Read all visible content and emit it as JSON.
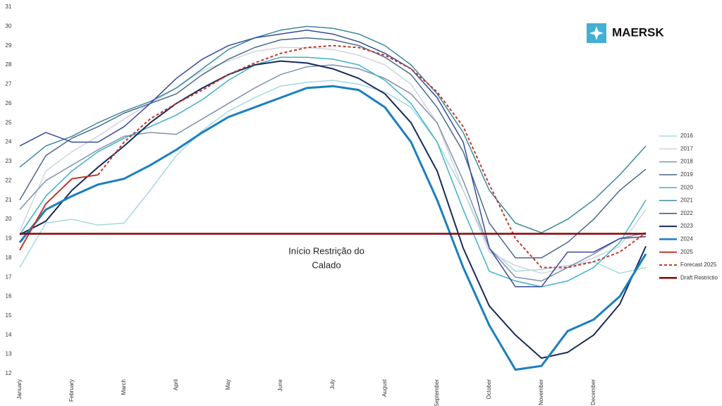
{
  "chart_data": {
    "type": "line",
    "brand": "MAERSK",
    "annotation": [
      "Início Restrição do",
      "Calado"
    ],
    "categories": [
      "January",
      null,
      "February",
      null,
      "March",
      null,
      "April",
      null,
      "May",
      null,
      "June",
      null,
      "July",
      null,
      "August",
      null,
      "September",
      null,
      "October",
      null,
      "November",
      null,
      "December",
      null,
      null
    ],
    "ylim": [
      12,
      31
    ],
    "yticks": [
      12,
      13,
      14,
      15,
      16,
      17,
      18,
      19,
      20,
      21,
      22,
      23,
      24,
      25,
      26,
      27,
      28,
      29,
      30,
      31
    ],
    "grid": false,
    "legend": "right",
    "series": [
      {
        "name": "2016",
        "color": "#a8d8e0",
        "width": 1.5,
        "values": [
          17.5,
          19.8,
          20.0,
          19.7,
          19.8,
          21.5,
          23.3,
          24.6,
          25.6,
          26.3,
          26.9,
          27.1,
          27.2,
          27.0,
          26.6,
          25.8,
          24.0,
          21.5,
          18.5,
          17.3,
          17.4,
          17.6,
          17.8,
          17.2,
          17.5
        ]
      },
      {
        "name": "2017",
        "color": "#d0d4e0",
        "width": 1.5,
        "values": [
          19.4,
          22.5,
          23.5,
          24.3,
          25.2,
          26.0,
          26.8,
          27.7,
          28.2,
          28.7,
          28.9,
          28.9,
          28.8,
          28.5,
          28.0,
          27.0,
          25.0,
          21.5,
          18.3,
          17.6,
          17.2,
          17.5,
          18.0,
          18.6,
          20.5
        ]
      },
      {
        "name": "2018",
        "color": "#8090b0",
        "width": 1.5,
        "values": [
          20.5,
          22.0,
          22.8,
          23.6,
          24.3,
          24.5,
          24.4,
          25.2,
          26.0,
          26.8,
          27.5,
          27.9,
          28.0,
          27.8,
          27.3,
          26.5,
          25.0,
          22.0,
          18.5,
          17.0,
          16.8,
          17.5,
          18.2,
          19.0,
          19.3
        ]
      },
      {
        "name": "2019",
        "color": "#4a6a8a",
        "width": 1.5,
        "values": [
          21.0,
          23.3,
          24.2,
          24.8,
          25.5,
          26.0,
          26.5,
          27.5,
          28.3,
          28.9,
          29.3,
          29.4,
          29.3,
          29.0,
          28.4,
          27.5,
          25.8,
          23.5,
          19.8,
          18.0,
          18.0,
          18.8,
          20.0,
          21.5,
          22.6
        ]
      },
      {
        "name": "2020",
        "color": "#40b0c8",
        "width": 1.5,
        "values": [
          19.2,
          21.2,
          22.5,
          23.5,
          24.2,
          24.8,
          25.4,
          26.2,
          27.2,
          28.0,
          28.4,
          28.4,
          28.3,
          28.0,
          27.2,
          26.0,
          24.0,
          20.5,
          17.3,
          16.8,
          16.5,
          16.8,
          17.5,
          18.8,
          21.0
        ]
      },
      {
        "name": "2021",
        "color": "#3a8aa0",
        "width": 1.5,
        "values": [
          22.7,
          23.8,
          24.3,
          25.0,
          25.6,
          26.1,
          26.8,
          27.8,
          28.8,
          29.4,
          29.8,
          30.0,
          29.9,
          29.6,
          29.0,
          28.0,
          26.5,
          24.5,
          21.5,
          19.8,
          19.3,
          20.0,
          21.0,
          22.3,
          23.8
        ]
      },
      {
        "name": "2022",
        "color": "#3a4a9a",
        "width": 1.5,
        "values": [
          23.8,
          24.5,
          24.0,
          24.0,
          24.8,
          26.0,
          27.3,
          28.3,
          29.0,
          29.4,
          29.6,
          29.8,
          29.6,
          29.2,
          28.6,
          27.8,
          26.3,
          24.0,
          18.5,
          16.5,
          16.5,
          18.3,
          18.3,
          19.0,
          19.1
        ]
      },
      {
        "name": "2023",
        "color": "#1a2a5a",
        "width": 2,
        "values": [
          19.2,
          19.9,
          21.5,
          22.7,
          23.8,
          25.0,
          26.0,
          26.8,
          27.5,
          28.0,
          28.2,
          28.1,
          27.8,
          27.3,
          26.5,
          25.0,
          22.5,
          18.5,
          15.5,
          14.0,
          12.8,
          13.1,
          14.0,
          15.6,
          18.6
        ]
      },
      {
        "name": "2024",
        "color": "#1a7fbf",
        "width": 3,
        "values": [
          18.8,
          20.5,
          21.2,
          21.8,
          22.1,
          22.8,
          23.6,
          24.5,
          25.3,
          25.8,
          26.3,
          26.8,
          26.9,
          26.7,
          25.8,
          24.0,
          21.0,
          17.5,
          14.5,
          12.2,
          12.4,
          14.2,
          14.8,
          16.0,
          18.2
        ]
      },
      {
        "name": "2025",
        "color": "#c0392b",
        "width": 2,
        "values": [
          18.4,
          20.8,
          22.1,
          22.3,
          null,
          null,
          null,
          null,
          null,
          null,
          null,
          null,
          null,
          null,
          null,
          null,
          null,
          null,
          null,
          null,
          null,
          null,
          null,
          null,
          null
        ]
      },
      {
        "name": "Forecast 2025",
        "color": "#c0392b",
        "width": 2,
        "dash": true,
        "values": [
          null,
          null,
          null,
          22.3,
          24.0,
          25.2,
          26.0,
          26.7,
          27.5,
          28.1,
          28.6,
          28.9,
          29.0,
          28.9,
          28.5,
          27.8,
          26.6,
          24.8,
          21.8,
          19.0,
          17.5,
          17.5,
          17.8,
          18.3,
          19.3
        ]
      },
      {
        "name": "Draft Restrictio",
        "color": "#8b0000",
        "width": 2.5,
        "values": [
          19.25,
          19.25,
          19.25,
          19.25,
          19.25,
          19.25,
          19.25,
          19.25,
          19.25,
          19.25,
          19.25,
          19.25,
          19.25,
          19.25,
          19.25,
          19.25,
          19.25,
          19.25,
          19.25,
          19.25,
          19.25,
          19.25,
          19.25,
          19.25,
          19.25
        ]
      }
    ]
  }
}
